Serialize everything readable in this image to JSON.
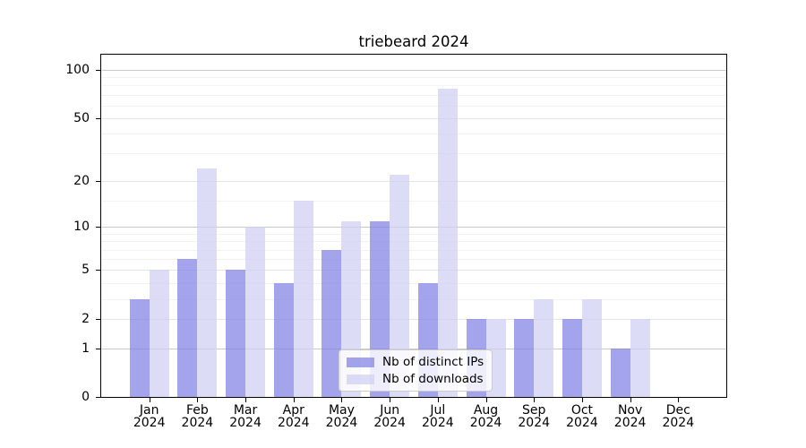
{
  "chart_data": {
    "type": "bar",
    "title": "triebeard 2024",
    "categories": [
      "Jan",
      "Feb",
      "Mar",
      "Apr",
      "May",
      "Jun",
      "Jul",
      "Aug",
      "Sep",
      "Oct",
      "Nov",
      "Dec"
    ],
    "year": "2024",
    "series": [
      {
        "name": "Nb of distinct IPs",
        "color": "#8686e6",
        "values": [
          3,
          6,
          5,
          4,
          7,
          11,
          4,
          2,
          2,
          2,
          1,
          0
        ]
      },
      {
        "name": "Nb of downloads",
        "color": "#d0d0f3",
        "values": [
          5,
          24,
          10,
          15,
          11,
          22,
          76,
          2,
          3,
          3,
          2,
          0
        ]
      }
    ],
    "yscale": "log1p",
    "ylim": [
      0,
      124
    ],
    "yticks": [
      0,
      1,
      2,
      5,
      10,
      20,
      50,
      100
    ],
    "yticks_minor": [
      3,
      4,
      6,
      7,
      8,
      9,
      15,
      30,
      40,
      60,
      70,
      80,
      90
    ],
    "grid": "horizontal",
    "legend_position": "lower-center",
    "axis_color": "#000000",
    "grid_decade_color": "#c8c8c8",
    "grid_major_color": "#e4e4e4",
    "grid_minor_color": "#f2f2f2"
  }
}
